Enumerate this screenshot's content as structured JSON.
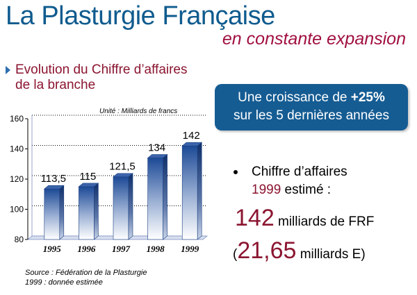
{
  "header": {
    "title": "La Plasturgie Française",
    "subtitle": "en constante expansion"
  },
  "section": {
    "line1": "Evolution du Chiffre d’affaires",
    "line2": "de la branche"
  },
  "callout": {
    "line1_prefix": "Une croissance de ",
    "line1_bold": "+25%",
    "line2": "sur les 5 dernières années"
  },
  "bullet": {
    "line1": "Chiffre d’affaires",
    "year": "1999",
    "line2_suffix": " estimé :"
  },
  "figure1": {
    "num": "142",
    "suffix": " milliards de FRF"
  },
  "figure2": {
    "prefix": "(",
    "num": "21,65",
    "suffix": " milliards E)"
  },
  "source": {
    "line1": "Source : Fédération de la Plasturgie",
    "line2": "1999 : donnée estimée"
  },
  "colors": {
    "title": "#0f5b8e",
    "accent": "#a01040",
    "callout_bg": "#155c93",
    "bar": "#1f4f9e"
  },
  "chart_data": {
    "type": "bar",
    "unit_note": "Unité : Milliards de francs",
    "categories": [
      "1995",
      "1996",
      "1997",
      "1998",
      "1999"
    ],
    "values": [
      113.5,
      115,
      121.5,
      134,
      142
    ],
    "value_labels": [
      "113,5",
      "115",
      "121,5",
      "134",
      "142"
    ],
    "ylim": [
      80,
      160
    ],
    "yticks": [
      "80",
      "100",
      "120",
      "140",
      "160"
    ],
    "grid": "dotted horizontal"
  }
}
